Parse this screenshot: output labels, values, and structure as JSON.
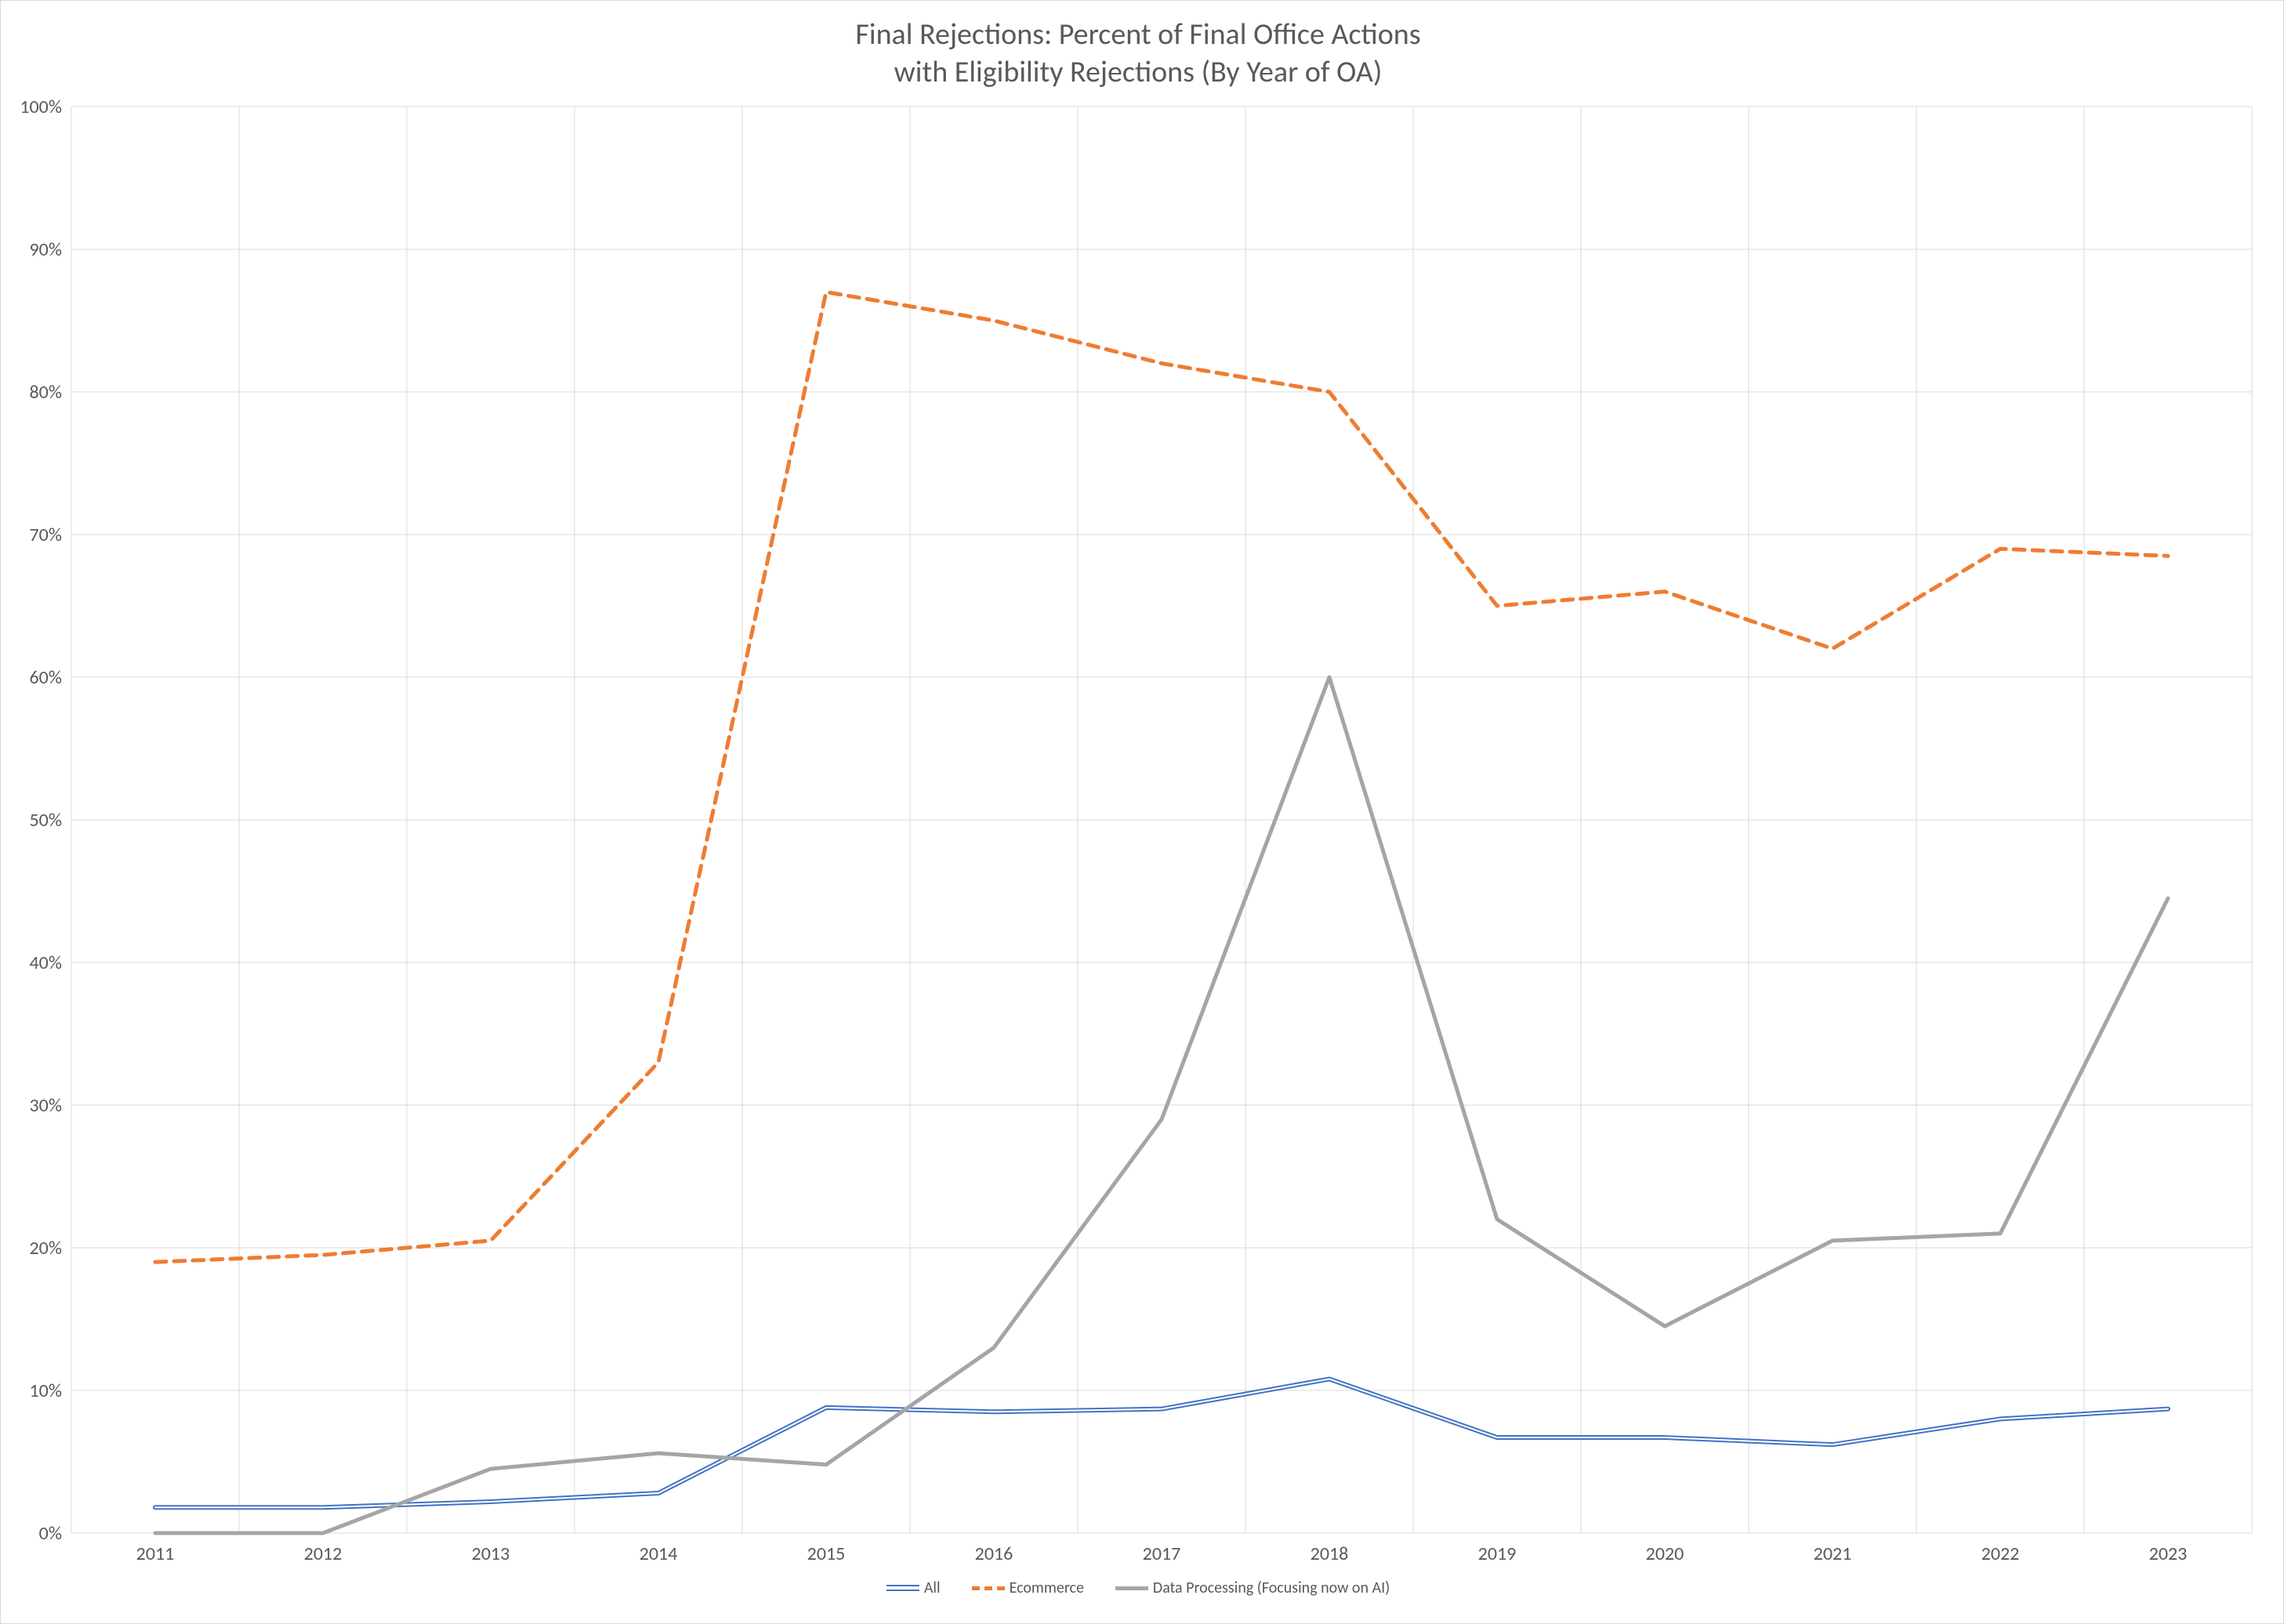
{
  "chart": {
    "type": "line",
    "title_line1": "Final Rejections: Percent of Final Office Actions",
    "title_line2": "with Eligibility Rejections (By Year of OA)",
    "title_fontsize": 38,
    "title_color": "#595959",
    "background_color": "#ffffff",
    "border_color": "#d9d9d9",
    "grid_color": "#d9d9d9",
    "axis_label_color": "#595959",
    "axis_label_fontsize": 24,
    "x": {
      "categories": [
        "2011",
        "2012",
        "2013",
        "2014",
        "2015",
        "2016",
        "2017",
        "2018",
        "2019",
        "2020",
        "2021",
        "2022",
        "2023"
      ]
    },
    "y": {
      "min": 0,
      "max": 100,
      "tick_step": 10,
      "tick_labels": [
        "0%",
        "10%",
        "20%",
        "30%",
        "40%",
        "50%",
        "60%",
        "70%",
        "80%",
        "90%",
        "100%"
      ]
    },
    "series": [
      {
        "name": "All",
        "color": "#4472c4",
        "line_width": 2,
        "dash": "none",
        "double": true,
        "values": [
          1.8,
          1.8,
          2.2,
          2.8,
          8.8,
          8.5,
          8.7,
          10.8,
          6.7,
          6.7,
          6.2,
          8.0,
          8.7
        ]
      },
      {
        "name": "Ecommerce",
        "color": "#ed7d31",
        "line_width": 5,
        "dash": "14 10",
        "double": false,
        "values": [
          19,
          19.5,
          20.5,
          33,
          87,
          85,
          82,
          80,
          65,
          66,
          62,
          69,
          68.5
        ]
      },
      {
        "name": "Data Processing (Focusing now on AI)",
        "color": "#a5a5a5",
        "line_width": 5,
        "dash": "none",
        "double": false,
        "values": [
          0,
          0,
          4.5,
          5.6,
          4.8,
          13,
          29,
          60,
          22,
          14.5,
          20.5,
          21,
          44.5
        ]
      }
    ],
    "legend_fontsize": 20
  }
}
